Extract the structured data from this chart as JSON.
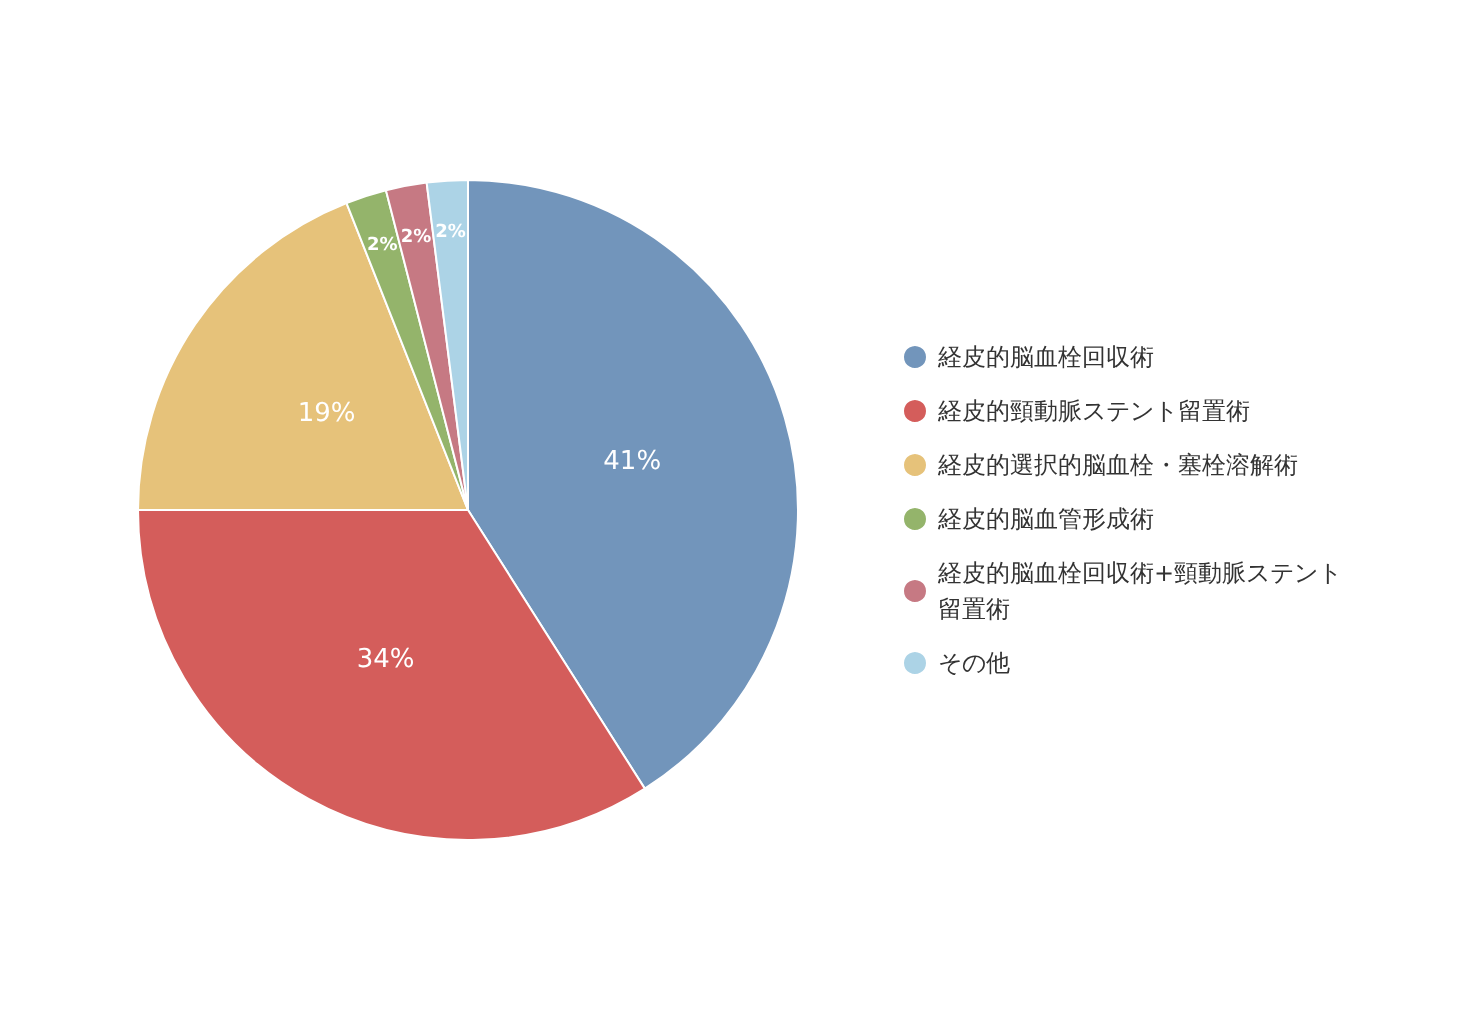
{
  "chart_data": {
    "type": "pie",
    "categories": [
      "経皮的脳血栓回収術",
      "経皮的頸動脈ステント留置術",
      "経皮的選択的脳血栓・塞栓溶解術",
      "経皮的脳血管形成術",
      "経皮的脳血栓回収術+頸動脈ステント留置術",
      "その他"
    ],
    "values": [
      41,
      34,
      19,
      2,
      2,
      2
    ],
    "colors": [
      "#7295bb",
      "#d45d5b",
      "#e6c27a",
      "#94b46b",
      "#c67983",
      "#acd3e6"
    ],
    "value_labels": [
      "41%",
      "34%",
      "19%",
      "2%",
      "2%",
      "2%"
    ],
    "legend": "right"
  }
}
